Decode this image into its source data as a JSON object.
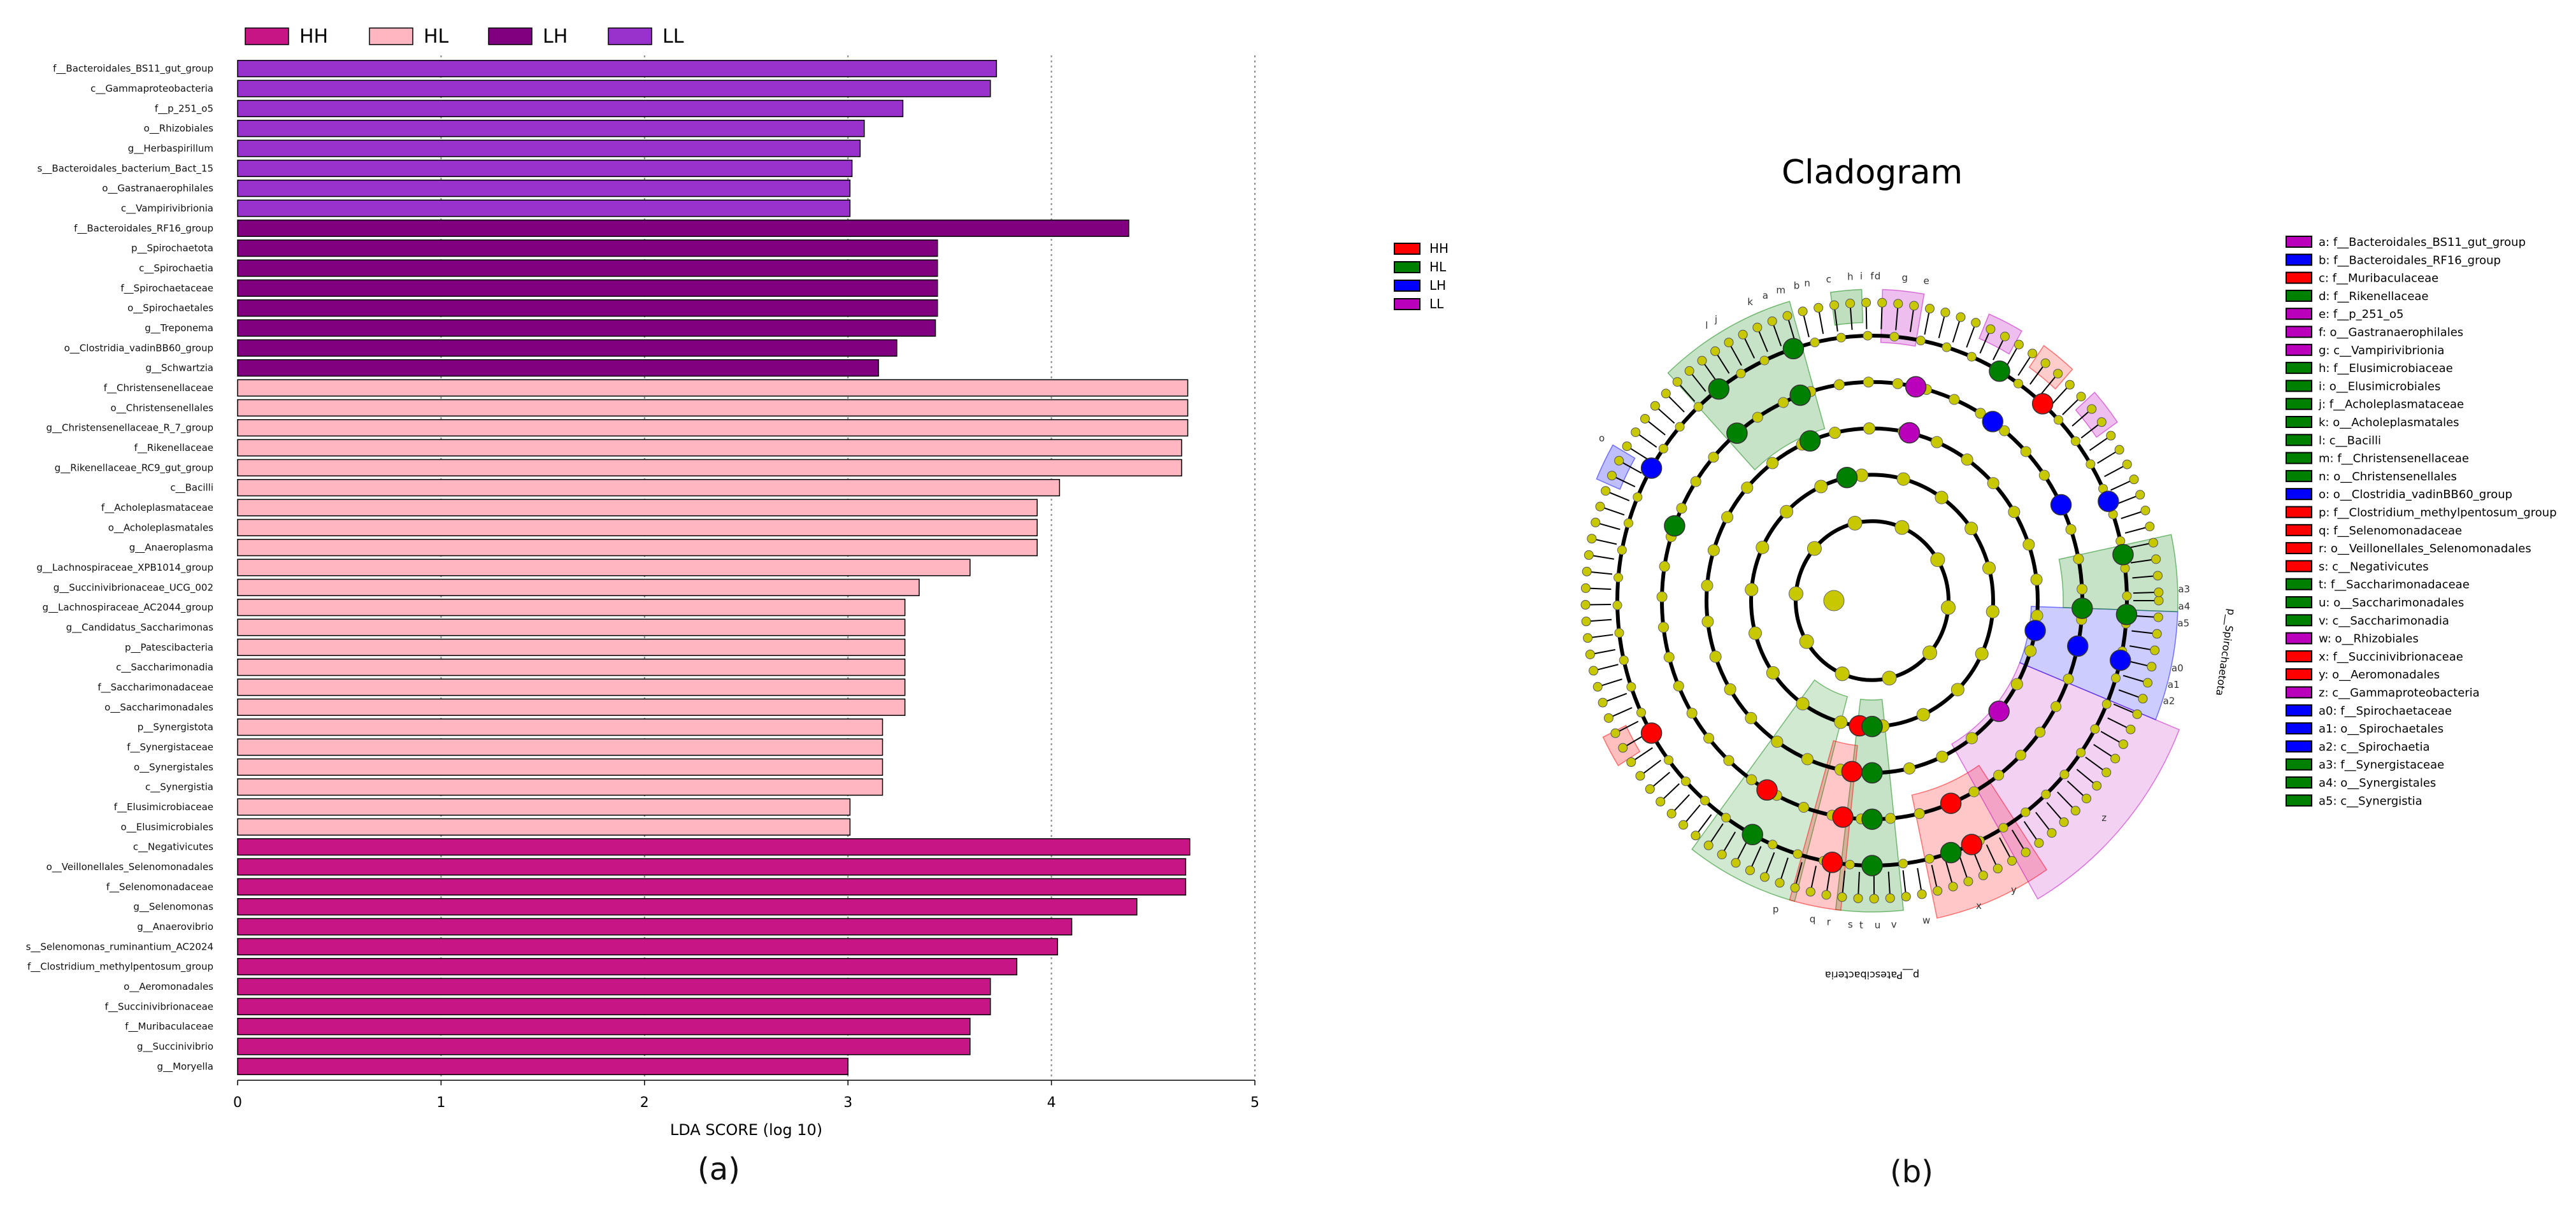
{
  "panel_a_label": "(a)",
  "panel_b_label": "(b)",
  "colors": {
    "HH": "#C71585",
    "HL": "#FFB6C1",
    "LH": "#800080",
    "LL": "#9932CC"
  },
  "chart_data": [
    {
      "type": "bar",
      "orientation": "horizontal",
      "title": "",
      "xlabel": "LDA SCORE (log 10)",
      "ylabel": "",
      "xlim": [
        0,
        5
      ],
      "xticks": [
        0,
        1,
        2,
        3,
        4,
        5
      ],
      "legend": [
        "HH",
        "HL",
        "LH",
        "LL"
      ],
      "legend_position": "top-left",
      "bars": [
        {
          "label": "f__Bacteroidales_BS11_gut_group",
          "value": 3.73,
          "group": "LL"
        },
        {
          "label": "c__Gammaproteobacteria",
          "value": 3.7,
          "group": "LL"
        },
        {
          "label": "f__p_251_o5",
          "value": 3.27,
          "group": "LL"
        },
        {
          "label": "o__Rhizobiales",
          "value": 3.08,
          "group": "LL"
        },
        {
          "label": "g__Herbaspirillum",
          "value": 3.06,
          "group": "LL"
        },
        {
          "label": "s__Bacteroidales_bacterium_Bact_15",
          "value": 3.02,
          "group": "LL"
        },
        {
          "label": "o__Gastranaerophilales",
          "value": 3.01,
          "group": "LL"
        },
        {
          "label": "c__Vampirivibrionia",
          "value": 3.01,
          "group": "LL"
        },
        {
          "label": "f__Bacteroidales_RF16_group",
          "value": 4.38,
          "group": "LH"
        },
        {
          "label": "p__Spirochaetota",
          "value": 3.44,
          "group": "LH"
        },
        {
          "label": "c__Spirochaetia",
          "value": 3.44,
          "group": "LH"
        },
        {
          "label": "f__Spirochaetaceae",
          "value": 3.44,
          "group": "LH"
        },
        {
          "label": "o__Spirochaetales",
          "value": 3.44,
          "group": "LH"
        },
        {
          "label": "g__Treponema",
          "value": 3.43,
          "group": "LH"
        },
        {
          "label": "o__Clostridia_vadinBB60_group",
          "value": 3.24,
          "group": "LH"
        },
        {
          "label": "g__Schwartzia",
          "value": 3.15,
          "group": "LH"
        },
        {
          "label": "f__Christensenellaceae",
          "value": 4.67,
          "group": "HL"
        },
        {
          "label": "o__Christensenellales",
          "value": 4.67,
          "group": "HL"
        },
        {
          "label": "g__Christensenellaceae_R_7_group",
          "value": 4.67,
          "group": "HL"
        },
        {
          "label": "f__Rikenellaceae",
          "value": 4.64,
          "group": "HL"
        },
        {
          "label": "g__Rikenellaceae_RC9_gut_group",
          "value": 4.64,
          "group": "HL"
        },
        {
          "label": "c__Bacilli",
          "value": 4.04,
          "group": "HL"
        },
        {
          "label": "f__Acholeplasmataceae",
          "value": 3.93,
          "group": "HL"
        },
        {
          "label": "o__Acholeplasmatales",
          "value": 3.93,
          "group": "HL"
        },
        {
          "label": "g__Anaeroplasma",
          "value": 3.93,
          "group": "HL"
        },
        {
          "label": "g__Lachnospiraceae_XPB1014_group",
          "value": 3.6,
          "group": "HL"
        },
        {
          "label": "g__Succinivibrionaceae_UCG_002",
          "value": 3.35,
          "group": "HL"
        },
        {
          "label": "g__Lachnospiraceae_AC2044_group",
          "value": 3.28,
          "group": "HL"
        },
        {
          "label": "g__Candidatus_Saccharimonas",
          "value": 3.28,
          "group": "HL"
        },
        {
          "label": "p__Patescibacteria",
          "value": 3.28,
          "group": "HL"
        },
        {
          "label": "c__Saccharimonadia",
          "value": 3.28,
          "group": "HL"
        },
        {
          "label": "f__Saccharimonadaceae",
          "value": 3.28,
          "group": "HL"
        },
        {
          "label": "o__Saccharimonadales",
          "value": 3.28,
          "group": "HL"
        },
        {
          "label": "p__Synergistota",
          "value": 3.17,
          "group": "HL"
        },
        {
          "label": "f__Synergistaceae",
          "value": 3.17,
          "group": "HL"
        },
        {
          "label": "o__Synergistales",
          "value": 3.17,
          "group": "HL"
        },
        {
          "label": "c__Synergistia",
          "value": 3.17,
          "group": "HL"
        },
        {
          "label": "f__Elusimicrobiaceae",
          "value": 3.01,
          "group": "HL"
        },
        {
          "label": "o__Elusimicrobiales",
          "value": 3.01,
          "group": "HL"
        },
        {
          "label": "c__Negativicutes",
          "value": 4.68,
          "group": "HH"
        },
        {
          "label": "o__Veillonellales_Selenomonadales",
          "value": 4.66,
          "group": "HH"
        },
        {
          "label": "f__Selenomonadaceae",
          "value": 4.66,
          "group": "HH"
        },
        {
          "label": "g__Selenomonas",
          "value": 4.42,
          "group": "HH"
        },
        {
          "label": "g__Anaerovibrio",
          "value": 4.1,
          "group": "HH"
        },
        {
          "label": "s__Selenomonas_ruminantium_AC2024",
          "value": 4.03,
          "group": "HH"
        },
        {
          "label": "f__Clostridium_methylpentosum_group",
          "value": 3.83,
          "group": "HH"
        },
        {
          "label": "o__Aeromonadales",
          "value": 3.7,
          "group": "HH"
        },
        {
          "label": "f__Succinivibrionaceae",
          "value": 3.7,
          "group": "HH"
        },
        {
          "label": "f__Muribaculaceae",
          "value": 3.6,
          "group": "HH"
        },
        {
          "label": "g__Succinivibrio",
          "value": 3.6,
          "group": "HH"
        },
        {
          "label": "g__Moryella",
          "value": 3.0,
          "group": "HH"
        }
      ]
    },
    {
      "type": "cladogram",
      "title": "Cladogram",
      "groups": [
        "HH",
        "HL",
        "LH",
        "LL"
      ],
      "group_colors": {
        "HH": "#FF0000",
        "HL": "#008000",
        "LH": "#0000FF",
        "LL": "#BB00BB"
      },
      "node_color": "#C8C800",
      "legend_position": "right",
      "clades": [
        {
          "key": "a",
          "name": "f__Bacteroidales_BS11_gut_group",
          "group": "LL"
        },
        {
          "key": "b",
          "name": "f__Bacteroidales_RF16_group",
          "group": "LH"
        },
        {
          "key": "c",
          "name": "f__Muribaculaceae",
          "group": "HH"
        },
        {
          "key": "d",
          "name": "f__Rikenellaceae",
          "group": "HL"
        },
        {
          "key": "e",
          "name": "f__p_251_o5",
          "group": "LL"
        },
        {
          "key": "f",
          "name": "o__Gastranaerophilales",
          "group": "LL"
        },
        {
          "key": "g",
          "name": "c__Vampirivibrionia",
          "group": "LL"
        },
        {
          "key": "h",
          "name": "f__Elusimicrobiaceae",
          "group": "HL"
        },
        {
          "key": "i",
          "name": "o__Elusimicrobiales",
          "group": "HL"
        },
        {
          "key": "j",
          "name": "f__Acholeplasmataceae",
          "group": "HL"
        },
        {
          "key": "k",
          "name": "o__Acholeplasmatales",
          "group": "HL"
        },
        {
          "key": "l",
          "name": "c__Bacilli",
          "group": "HL"
        },
        {
          "key": "m",
          "name": "f__Christensenellaceae",
          "group": "HL"
        },
        {
          "key": "n",
          "name": "o__Christensenellales",
          "group": "HL"
        },
        {
          "key": "o",
          "name": "o__Clostridia_vadinBB60_group",
          "group": "LH"
        },
        {
          "key": "p",
          "name": "f__Clostridium_methylpentosum_group",
          "group": "HH"
        },
        {
          "key": "q",
          "name": "f__Selenomonadaceae",
          "group": "HH"
        },
        {
          "key": "r",
          "name": "o__Veillonellales_Selenomonadales",
          "group": "HH"
        },
        {
          "key": "s",
          "name": "c__Negativicutes",
          "group": "HH"
        },
        {
          "key": "t",
          "name": "f__Saccharimonadaceae",
          "group": "HL"
        },
        {
          "key": "u",
          "name": "o__Saccharimonadales",
          "group": "HL"
        },
        {
          "key": "v",
          "name": "c__Saccharimonadia",
          "group": "HL"
        },
        {
          "key": "w",
          "name": "o__Rhizobiales",
          "group": "LL"
        },
        {
          "key": "x",
          "name": "f__Succinivibrionaceae",
          "group": "HH"
        },
        {
          "key": "y",
          "name": "o__Aeromonadales",
          "group": "HH"
        },
        {
          "key": "z",
          "name": "c__Gammaproteobacteria",
          "group": "LL"
        },
        {
          "key": "a0",
          "name": "f__Spirochaetaceae",
          "group": "LH"
        },
        {
          "key": "a1",
          "name": "o__Spirochaetales",
          "group": "LH"
        },
        {
          "key": "a2",
          "name": "c__Spirochaetia",
          "group": "LH"
        },
        {
          "key": "a3",
          "name": "f__Synergistaceae",
          "group": "HL"
        },
        {
          "key": "a4",
          "name": "o__Synergistales",
          "group": "HL"
        },
        {
          "key": "a5",
          "name": "c__Synergistia",
          "group": "HL"
        }
      ],
      "phylum_labels": [
        "p__Patescibacteria",
        "p__Spirochaetota"
      ]
    }
  ]
}
